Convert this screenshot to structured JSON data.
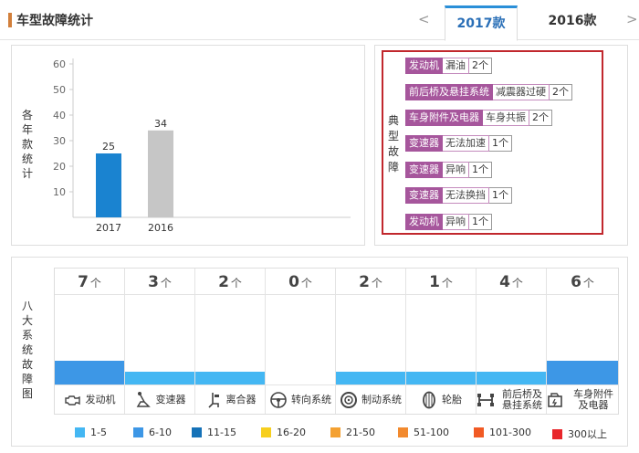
{
  "header": {
    "title": "车型故障统计",
    "prev": "<",
    "next": ">",
    "tabs": [
      {
        "label": "2017款",
        "active": true
      },
      {
        "label": "2016款",
        "active": false
      }
    ]
  },
  "yearly_chart": {
    "ylabel": "各年款统计"
  },
  "chart_data": {
    "type": "bar",
    "title": "",
    "xlabel": "",
    "ylabel": "各年款统计",
    "categories": [
      "2017",
      "2016"
    ],
    "values": [
      25,
      34
    ],
    "colors": [
      "#1a83d0",
      "#c6c6c6"
    ],
    "ylim": [
      0,
      60
    ],
    "yticks": [
      10,
      20,
      30,
      40,
      50,
      60
    ],
    "grid": false
  },
  "typical_faults": {
    "label": "典型故障",
    "items": [
      {
        "category": "发动机",
        "issue": "漏油",
        "count": "2个"
      },
      {
        "category": "前后桥及悬挂系统",
        "issue": "减震器过硬",
        "count": "2个"
      },
      {
        "category": "车身附件及电器",
        "issue": "车身共振",
        "count": "2个"
      },
      {
        "category": "变速器",
        "issue": "无法加速",
        "count": "1个"
      },
      {
        "category": "变速器",
        "issue": "异响",
        "count": "1个"
      },
      {
        "category": "变速器",
        "issue": "无法换挡",
        "count": "1个"
      },
      {
        "category": "发动机",
        "issue": "异响",
        "count": "1个"
      }
    ]
  },
  "system_faults": {
    "label": "八大系统故障图",
    "unit": "个",
    "systems": [
      {
        "name": "发动机",
        "count": "7",
        "icon": "engine-icon",
        "level_color": "#3d97e6"
      },
      {
        "name": "变速器",
        "count": "3",
        "icon": "gear-lever-icon",
        "level_color": "#44b7f3"
      },
      {
        "name": "离合器",
        "count": "2",
        "icon": "clutch-icon",
        "level_color": "#44b7f3"
      },
      {
        "name": "转向系统",
        "count": "0",
        "icon": "steering-wheel-icon",
        "level_color": ""
      },
      {
        "name": "制动系统",
        "count": "2",
        "icon": "brake-disc-icon",
        "level_color": "#44b7f3"
      },
      {
        "name": "轮胎",
        "count": "1",
        "icon": "tire-icon",
        "level_color": "#44b7f3"
      },
      {
        "name": "前后桥及悬挂系统",
        "count": "4",
        "icon": "suspension-icon",
        "level_color": "#44b7f3"
      },
      {
        "name": "车身附件及电器",
        "count": "6",
        "icon": "car-body-icon",
        "level_color": "#3d97e6"
      }
    ]
  },
  "legend": [
    {
      "label": "1-5",
      "color": "#44b7f3"
    },
    {
      "label": "6-10",
      "color": "#3d97e6"
    },
    {
      "label": "11-15",
      "color": "#1572b8"
    },
    {
      "label": "16-20",
      "color": "#f7cf1e"
    },
    {
      "label": "21-50",
      "color": "#f4a132"
    },
    {
      "label": "51-100",
      "color": "#f28a2e"
    },
    {
      "label": "101-300",
      "color": "#f15a24"
    },
    {
      "label": "300以上",
      "color": "#e8262b"
    }
  ]
}
